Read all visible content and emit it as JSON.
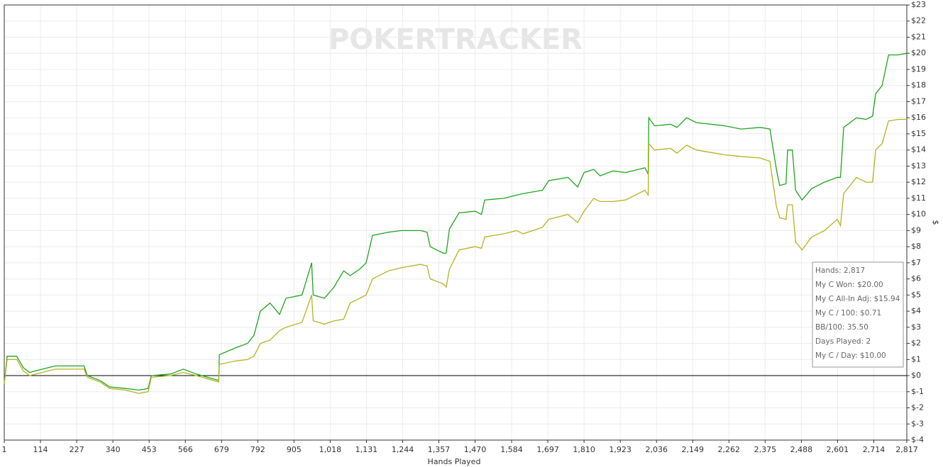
{
  "chart_data": {
    "type": "line",
    "watermark": "POKERTRACKER",
    "xlabel": "Hands Played",
    "ylabel": "$",
    "xlim": [
      1,
      2817
    ],
    "ylim": [
      -4,
      23
    ],
    "xticks": [
      1,
      114,
      227,
      340,
      453,
      566,
      679,
      792,
      905,
      {
        "value": 1018,
        "label": "1,018"
      },
      {
        "value": 1131,
        "label": "1,131"
      },
      {
        "value": 1244,
        "label": "1,244"
      },
      {
        "value": 1357,
        "label": "1,357"
      },
      {
        "value": 1470,
        "label": "1,470"
      },
      {
        "value": 1584,
        "label": "1,584"
      },
      {
        "value": 1697,
        "label": "1,697"
      },
      {
        "value": 1810,
        "label": "1,810"
      },
      {
        "value": 1923,
        "label": "1,923"
      },
      {
        "value": 2036,
        "label": "2,036"
      },
      {
        "value": 2149,
        "label": "2,149"
      },
      {
        "value": 2262,
        "label": "2,262"
      },
      {
        "value": 2375,
        "label": "2,375"
      },
      {
        "value": 2488,
        "label": "2,488"
      },
      {
        "value": 2601,
        "label": "2,601"
      },
      {
        "value": 2714,
        "label": "2,714"
      },
      {
        "value": 2817,
        "label": "2,817"
      }
    ],
    "yticks": [
      {
        "value": 23,
        "label": "$23"
      },
      {
        "value": 22,
        "label": "$22"
      },
      {
        "value": 21,
        "label": "$21"
      },
      {
        "value": 20,
        "label": "$20"
      },
      {
        "value": 19,
        "label": "$19"
      },
      {
        "value": 18,
        "label": "$18"
      },
      {
        "value": 17,
        "label": "$17"
      },
      {
        "value": 16,
        "label": "$16"
      },
      {
        "value": 15,
        "label": "$15"
      },
      {
        "value": 14,
        "label": "$14"
      },
      {
        "value": 13,
        "label": "$13"
      },
      {
        "value": 12,
        "label": "$12"
      },
      {
        "value": 11,
        "label": "$11"
      },
      {
        "value": 10,
        "label": "$10"
      },
      {
        "value": 9,
        "label": "$9"
      },
      {
        "value": 8,
        "label": "$8"
      },
      {
        "value": 7,
        "label": "$7"
      },
      {
        "value": 6,
        "label": "$6"
      },
      {
        "value": 5,
        "label": "$5"
      },
      {
        "value": 4,
        "label": "$4"
      },
      {
        "value": 3,
        "label": "$3"
      },
      {
        "value": 2,
        "label": "$2"
      },
      {
        "value": 1,
        "label": "$1"
      },
      {
        "value": 0,
        "label": "$0"
      },
      {
        "value": -1,
        "label": "$-1"
      },
      {
        "value": -2,
        "label": "$-2"
      },
      {
        "value": -3,
        "label": "$-3"
      },
      {
        "value": -4,
        "label": "$-4"
      }
    ],
    "grid": true,
    "x": [
      1,
      10,
      40,
      60,
      80,
      120,
      160,
      250,
      260,
      300,
      330,
      380,
      420,
      450,
      460,
      520,
      560,
      600,
      670,
      672,
      720,
      760,
      780,
      800,
      830,
      860,
      880,
      930,
      960,
      965,
      1000,
      1030,
      1060,
      1080,
      1110,
      1130,
      1150,
      1200,
      1240,
      1300,
      1320,
      1330,
      1370,
      1380,
      1390,
      1420,
      1470,
      1490,
      1500,
      1560,
      1600,
      1620,
      1680,
      1700,
      1760,
      1790,
      1810,
      1840,
      1860,
      1900,
      1940,
      1960,
      2000,
      2010,
      2012,
      2030,
      2080,
      2100,
      2130,
      2160,
      2250,
      2300,
      2360,
      2390,
      2410,
      2420,
      2440,
      2445,
      2460,
      2470,
      2490,
      2520,
      2560,
      2600,
      2610,
      2620,
      2660,
      2690,
      2710,
      2720,
      2740,
      2760,
      2790,
      2817
    ],
    "series": [
      {
        "color": "#1fa51f",
        "values": [
          -0.5,
          1.2,
          1.2,
          0.5,
          0.2,
          0.4,
          0.6,
          0.6,
          0.0,
          -0.3,
          -0.7,
          -0.8,
          -0.9,
          -0.8,
          0.0,
          0.1,
          0.4,
          0.1,
          -0.3,
          1.3,
          1.7,
          2.0,
          2.5,
          4.0,
          4.5,
          3.8,
          4.8,
          5.0,
          7.0,
          5.0,
          4.8,
          5.5,
          6.5,
          6.2,
          6.6,
          7.0,
          8.7,
          8.9,
          9.0,
          9.0,
          8.9,
          8.0,
          7.6,
          7.6,
          9.1,
          10.1,
          10.2,
          10.0,
          10.9,
          11.0,
          11.2,
          11.3,
          11.5,
          12.1,
          12.3,
          11.7,
          12.6,
          12.8,
          12.4,
          12.7,
          12.6,
          12.7,
          12.9,
          12.5,
          16.0,
          15.5,
          15.6,
          15.4,
          16.0,
          15.7,
          15.5,
          15.3,
          15.4,
          15.3,
          12.8,
          11.8,
          11.9,
          14.0,
          14.0,
          11.5,
          10.9,
          11.6,
          12.0,
          12.3,
          12.3,
          15.4,
          16.0,
          15.9,
          16.1,
          17.5,
          18.0,
          19.9,
          19.9,
          20.0
        ]
      },
      {
        "color": "#b3b324",
        "values": [
          -0.5,
          1.0,
          1.0,
          0.3,
          0.0,
          0.2,
          0.4,
          0.4,
          -0.1,
          -0.4,
          -0.8,
          -0.9,
          -1.1,
          -1.0,
          -0.1,
          0.0,
          0.2,
          0.0,
          -0.4,
          0.7,
          0.9,
          1.0,
          1.2,
          2.0,
          2.2,
          2.8,
          3.0,
          3.3,
          5.0,
          3.4,
          3.2,
          3.4,
          3.5,
          4.5,
          4.8,
          5.0,
          6.0,
          6.5,
          6.7,
          6.9,
          6.8,
          6.0,
          5.7,
          5.5,
          6.6,
          7.8,
          8.0,
          7.9,
          8.6,
          8.8,
          9.0,
          8.8,
          9.2,
          9.7,
          10.0,
          9.5,
          10.2,
          11.0,
          10.8,
          10.8,
          10.9,
          11.1,
          11.5,
          11.2,
          14.4,
          14.0,
          14.1,
          13.8,
          14.3,
          14.0,
          13.7,
          13.6,
          13.5,
          13.3,
          10.5,
          9.8,
          9.7,
          10.6,
          10.6,
          8.3,
          7.8,
          8.6,
          9.0,
          9.7,
          9.3,
          11.3,
          12.3,
          12.0,
          12.0,
          14.0,
          14.4,
          15.8,
          15.9,
          15.9
        ]
      }
    ],
    "annotations": [
      "Hands: 2,817",
      "My C Won: $20.00",
      "My C All-In Adj: $15.94",
      "My C / 100: $0.71",
      "BB/100: 35.50",
      "Days Played: 2",
      "My C / Day: $10.00"
    ]
  }
}
